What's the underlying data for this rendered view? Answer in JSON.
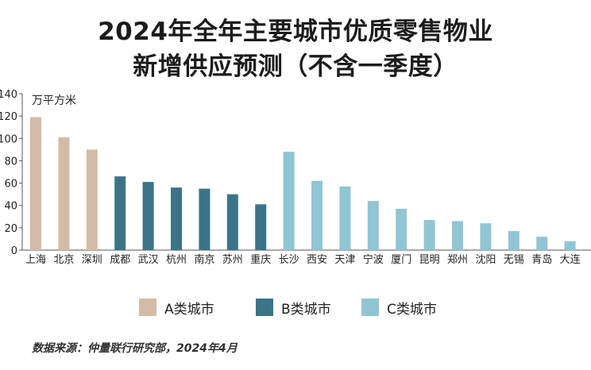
{
  "title_line1": "2024年全年主要城市优质零售物业",
  "title_line2": "新增供应预测（不含一季度）",
  "source": "数据来源：仲量联行研究部，2024年4月",
  "colors": {
    "A": "#d4bba7",
    "B": "#3c7487",
    "C": "#92c5d3",
    "axis": "#555555"
  },
  "chart_data": {
    "type": "bar",
    "ylabel": "万平方米",
    "ylim": [
      0,
      140
    ],
    "yticks": [
      0,
      20,
      40,
      60,
      80,
      100,
      120,
      140
    ],
    "grid": false,
    "legend_position": "bottom",
    "categories": [
      "上海",
      "北京",
      "深圳",
      "成都",
      "武汉",
      "杭州",
      "南京",
      "苏州",
      "重庆",
      "长沙",
      "西安",
      "天津",
      "宁波",
      "厦门",
      "昆明",
      "郑州",
      "沈阳",
      "无锡",
      "青岛",
      "大连"
    ],
    "values": [
      119,
      101,
      90,
      66,
      61,
      56,
      55,
      50,
      41,
      88,
      62,
      57,
      44,
      37,
      27,
      26,
      24,
      17,
      12,
      8
    ],
    "groups": [
      "A",
      "A",
      "A",
      "B",
      "B",
      "B",
      "B",
      "B",
      "B",
      "C",
      "C",
      "C",
      "C",
      "C",
      "C",
      "C",
      "C",
      "C",
      "C",
      "C"
    ],
    "legend": [
      {
        "key": "A",
        "label": "A类城市"
      },
      {
        "key": "B",
        "label": "B类城市"
      },
      {
        "key": "C",
        "label": "C类城市"
      }
    ]
  }
}
